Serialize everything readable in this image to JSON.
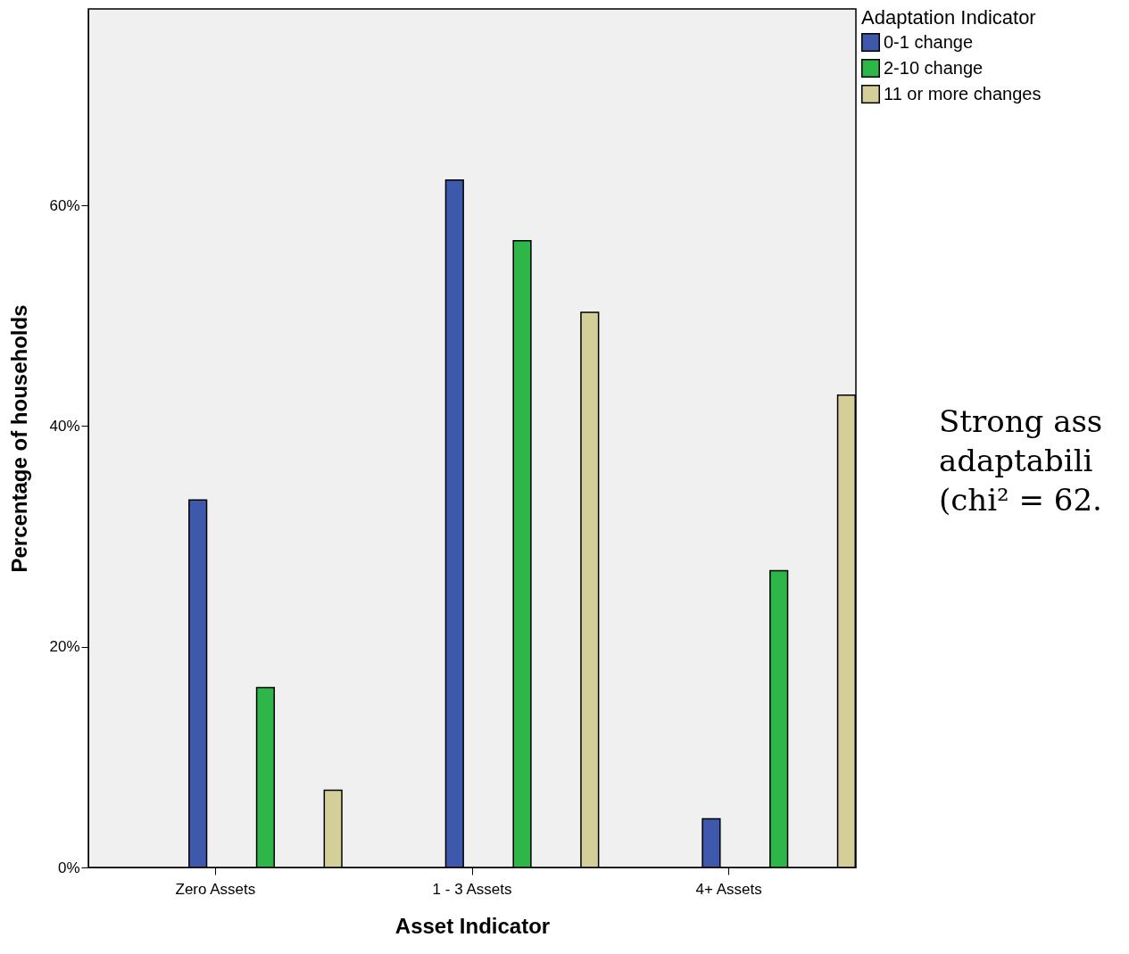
{
  "chart_data": {
    "type": "bar",
    "xlabel": "Asset Indicator",
    "ylabel": "Percentage of households",
    "legend_title": "Adaptation Indicator",
    "categories": [
      "Zero Assets",
      "1 - 3 Assets",
      "4+ Assets"
    ],
    "series": [
      {
        "name": "0-1 change",
        "color": "#3e58ac",
        "values": [
          33.3,
          62.3,
          4.4
        ]
      },
      {
        "name": "2-10 change",
        "color": "#2eb648",
        "values": [
          16.3,
          56.8,
          26.9
        ]
      },
      {
        "name": "11 or more changes",
        "color": "#d4ce98",
        "values": [
          7.0,
          50.3,
          42.8
        ]
      }
    ],
    "ylim": [
      0,
      77.8
    ],
    "yticks": [
      {
        "value": 0,
        "label": "0%"
      },
      {
        "value": 20,
        "label": "20%"
      },
      {
        "value": 40,
        "label": "40%"
      },
      {
        "value": 60,
        "label": "60%"
      }
    ],
    "legend": "top right",
    "grid": false,
    "annotations": [
      "Strong ass",
      "adaptabili",
      "(chi² = 62."
    ]
  }
}
